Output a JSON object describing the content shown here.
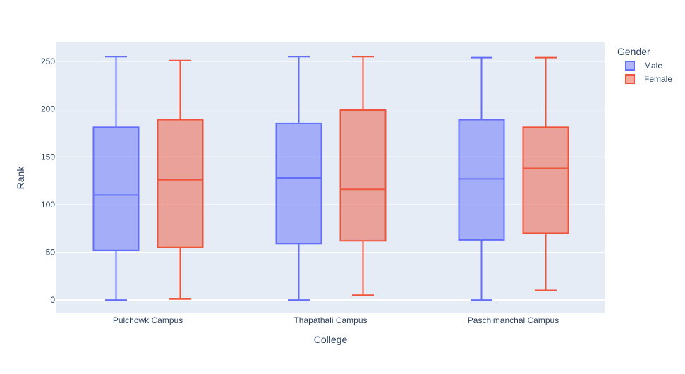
{
  "chart_data": {
    "type": "box",
    "categories": [
      "Pulchowk Campus",
      "Thapathali Campus",
      "Paschimanchal Campus"
    ],
    "xlabel": "College",
    "ylabel": "Rank",
    "ylim": [
      -14,
      270
    ],
    "yticks": [
      0,
      50,
      100,
      150,
      200,
      250
    ],
    "grid": true,
    "legend": {
      "title": "Gender",
      "position": "top-right"
    },
    "series": [
      {
        "name": "Male",
        "color": "#636efa",
        "fill": "rgba(99,110,250,0.5)",
        "boxes": [
          {
            "min": 0,
            "q1": 52,
            "median": 110,
            "q3": 181,
            "max": 255
          },
          {
            "min": 0,
            "q1": 59,
            "median": 128,
            "q3": 185,
            "max": 255
          },
          {
            "min": 0,
            "q1": 63,
            "median": 127,
            "q3": 189,
            "max": 254
          }
        ]
      },
      {
        "name": "Female",
        "color": "#ef553b",
        "fill": "rgba(239,85,59,0.5)",
        "boxes": [
          {
            "min": 1,
            "q1": 55,
            "median": 126,
            "q3": 189,
            "max": 251
          },
          {
            "min": 5,
            "q1": 62,
            "median": 116,
            "q3": 199,
            "max": 255
          },
          {
            "min": 10,
            "q1": 70,
            "median": 138,
            "q3": 181,
            "max": 254
          }
        ]
      }
    ]
  }
}
